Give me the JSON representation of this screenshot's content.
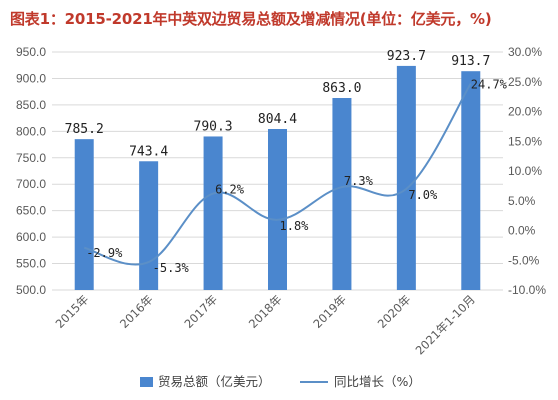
{
  "title": "图表1：2015-2021年中英双边贸易总额及增减情况(单位：亿美元，%)",
  "colors": {
    "bar": "#4a86cf",
    "line": "#5b8fc7",
    "title": "#c0392b",
    "grid": "#d9d9d9"
  },
  "chart_data": {
    "type": "bar",
    "categories": [
      "2015年",
      "2016年",
      "2017年",
      "2018年",
      "2019年",
      "2020年",
      "2021年1-10月"
    ],
    "series": [
      {
        "name": "贸易总额（亿美元）",
        "type": "bar",
        "axis": "left",
        "values": [
          785.2,
          743.4,
          790.3,
          804.4,
          863.0,
          923.7,
          913.7
        ],
        "labels": [
          "785.2",
          "743.4",
          "790.3",
          "804.4",
          "863.0",
          "923.7",
          "913.7"
        ]
      },
      {
        "name": "同比增长（%）",
        "type": "line",
        "axis": "right",
        "values": [
          -2.9,
          -5.3,
          6.2,
          1.8,
          7.3,
          7.0,
          24.7
        ],
        "labels": [
          "-2.9%",
          "-5.3%",
          "6.2%",
          "1.8%",
          "7.3%",
          "7.0%",
          "24.7%"
        ]
      }
    ],
    "y_left": {
      "lim": [
        500,
        950
      ],
      "step": 50,
      "ticks": [
        "500.0",
        "550.0",
        "600.0",
        "650.0",
        "700.0",
        "750.0",
        "800.0",
        "850.0",
        "900.0",
        "950.0"
      ]
    },
    "y_right": {
      "lim": [
        -10,
        30
      ],
      "step": 5,
      "ticks": [
        "-10.0%",
        "-5.0%",
        "0.0%",
        "5.0%",
        "10.0%",
        "15.0%",
        "20.0%",
        "25.0%",
        "30.0%"
      ]
    },
    "grid": true,
    "legend": "bottom"
  }
}
